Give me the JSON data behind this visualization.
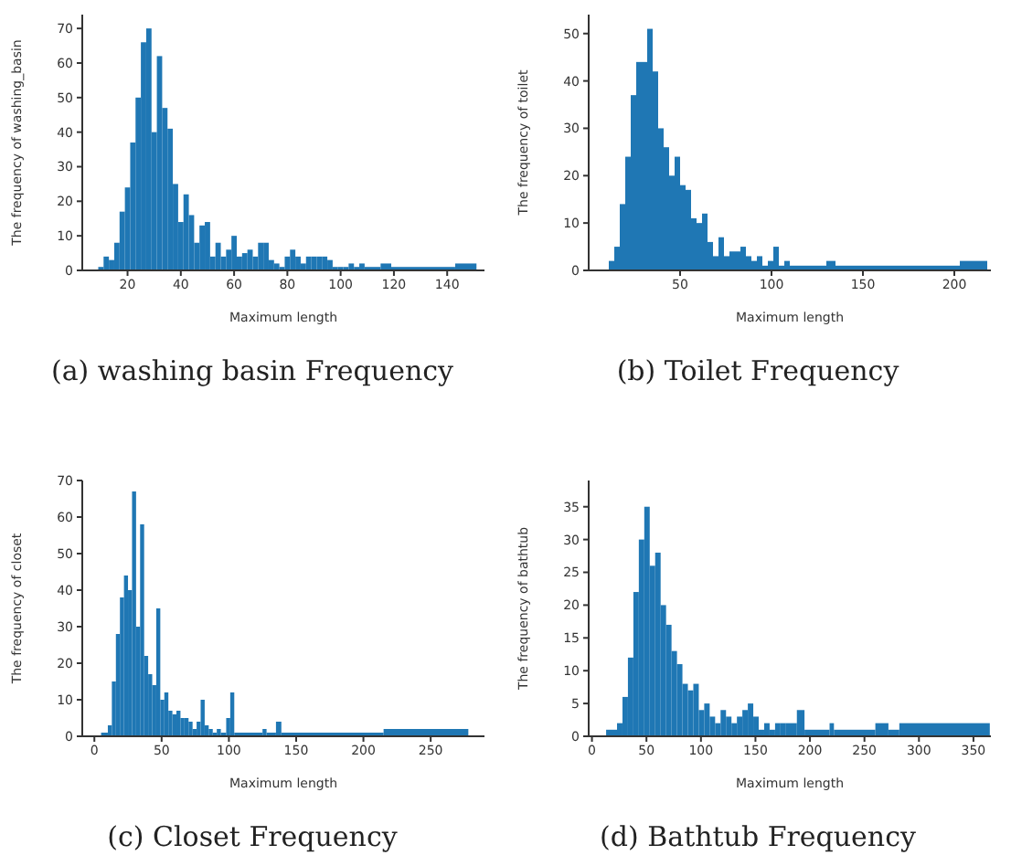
{
  "chart_data": [
    {
      "type": "histogram",
      "title": "(a) washing basin Frequency",
      "xlabel": "Maximum length",
      "ylabel": "The frequency of washing_basin",
      "color": "#1f77b4",
      "xlim": [
        3,
        154
      ],
      "xticks": [
        20,
        40,
        60,
        80,
        100,
        120,
        140
      ],
      "ylim": [
        0,
        74
      ],
      "yticks": [
        0,
        10,
        20,
        30,
        40,
        50,
        60,
        70
      ],
      "bins": [
        9,
        11,
        13,
        15,
        17,
        19,
        21,
        23,
        25,
        27,
        29,
        31,
        33,
        35,
        37,
        39,
        41,
        43,
        45,
        47,
        49,
        51,
        53,
        55,
        57,
        59,
        61,
        63,
        65,
        67,
        69,
        71,
        73,
        75,
        77,
        79,
        81,
        83,
        85,
        87,
        89,
        91,
        93,
        95,
        97,
        99,
        101,
        103,
        105,
        107,
        109,
        115,
        119,
        143,
        151
      ],
      "values": [
        1,
        4,
        3,
        8,
        17,
        24,
        37,
        50,
        66,
        70,
        40,
        62,
        47,
        41,
        25,
        14,
        22,
        16,
        8,
        13,
        14,
        4,
        8,
        4,
        6,
        10,
        4,
        5,
        6,
        4,
        8,
        8,
        3,
        2,
        1,
        4,
        6,
        4,
        2,
        4,
        4,
        4,
        4,
        3,
        1,
        1,
        1,
        2,
        1,
        2,
        1,
        2,
        1,
        2
      ]
    },
    {
      "type": "histogram",
      "title": "(b) Toilet Frequency",
      "xlabel": "Maximum length",
      "ylabel": "The frequency of toilet",
      "color": "#1f77b4",
      "xlim": [
        0,
        220
      ],
      "xticks": [
        50,
        100,
        150,
        200
      ],
      "ylim": [
        0,
        54
      ],
      "yticks": [
        0,
        10,
        20,
        30,
        40,
        50
      ],
      "bins": [
        11,
        14,
        17,
        20,
        23,
        26,
        29,
        32,
        35,
        38,
        41,
        44,
        47,
        50,
        53,
        56,
        59,
        62,
        65,
        68,
        71,
        74,
        77,
        80,
        83,
        86,
        89,
        92,
        95,
        98,
        101,
        104,
        107,
        110,
        120,
        130,
        135,
        145,
        203,
        218
      ],
      "values": [
        2,
        5,
        14,
        24,
        37,
        44,
        44,
        51,
        42,
        30,
        26,
        20,
        24,
        18,
        17,
        11,
        10,
        12,
        6,
        3,
        7,
        3,
        4,
        4,
        5,
        3,
        2,
        3,
        1,
        2,
        5,
        1,
        2,
        1,
        1,
        2,
        1,
        1,
        2
      ]
    },
    {
      "type": "histogram",
      "title": "(c) Closet Frequency",
      "xlabel": "Maximum length",
      "ylabel": "The frequency of closet",
      "color": "#1f77b4",
      "xlim": [
        -9,
        290
      ],
      "xticks": [
        0,
        50,
        100,
        150,
        200,
        250
      ],
      "ylim": [
        0,
        70
      ],
      "yticks": [
        0,
        10,
        20,
        30,
        40,
        50,
        60,
        70
      ],
      "bins": [
        5,
        10,
        13,
        16,
        19,
        22,
        25,
        28,
        31,
        34,
        37,
        40,
        43,
        46,
        49,
        52,
        55,
        58,
        61,
        64,
        67,
        70,
        73,
        76,
        79,
        82,
        85,
        88,
        91,
        94,
        98,
        101,
        104,
        125,
        128,
        135,
        139,
        215,
        278
      ],
      "values": [
        1,
        3,
        15,
        28,
        38,
        44,
        40,
        67,
        30,
        58,
        22,
        17,
        14,
        35,
        10,
        12,
        7,
        6,
        7,
        5,
        5,
        4,
        2,
        4,
        10,
        3,
        2,
        1,
        2,
        1,
        5,
        12,
        1,
        2,
        1,
        4,
        1,
        2
      ]
    },
    {
      "type": "histogram",
      "title": "(d) Bathtub Frequency",
      "xlabel": "Maximum length",
      "ylabel": "The frequency of bathtub",
      "color": "#1f77b4",
      "xlim": [
        -3,
        366
      ],
      "xticks": [
        0,
        50,
        100,
        150,
        200,
        250,
        300,
        350
      ],
      "ylim": [
        0,
        39
      ],
      "yticks": [
        0,
        5,
        10,
        15,
        20,
        25,
        30,
        35
      ],
      "bins": [
        13,
        23,
        28,
        33,
        38,
        43,
        48,
        53,
        58,
        63,
        68,
        73,
        78,
        83,
        88,
        93,
        98,
        103,
        108,
        113,
        118,
        123,
        128,
        133,
        138,
        143,
        148,
        153,
        158,
        163,
        168,
        173,
        178,
        188,
        195,
        218,
        222,
        260,
        272,
        282,
        365
      ],
      "values": [
        1,
        2,
        6,
        12,
        22,
        30,
        35,
        26,
        28,
        20,
        17,
        13,
        11,
        8,
        7,
        8,
        4,
        5,
        3,
        2,
        4,
        3,
        2,
        3,
        4,
        5,
        3,
        1,
        2,
        1,
        2,
        2,
        2,
        4,
        1,
        2,
        1,
        2,
        1,
        2
      ]
    }
  ]
}
